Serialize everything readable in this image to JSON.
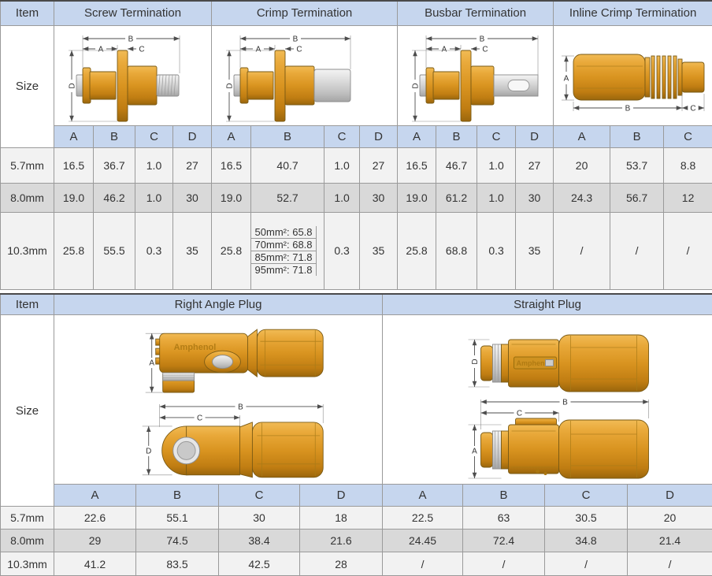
{
  "brand": "Amphenol",
  "colors": {
    "header_bg": "#c6d6ee",
    "row_light": "#f2f2f2",
    "row_dark": "#d9d9d9",
    "border": "#9a9a9a",
    "connector_orange": "#d99420",
    "metal_gray": "#c2c2c2"
  },
  "termination_table": {
    "item_label": "Item",
    "size_label": "Size",
    "groups": [
      {
        "label": "Screw Termination",
        "columns": [
          "A",
          "B",
          "C",
          "D"
        ]
      },
      {
        "label": "Crimp Termination",
        "columns": [
          "A",
          "B",
          "C",
          "D"
        ]
      },
      {
        "label": "Busbar Termination",
        "columns": [
          "A",
          "B",
          "C",
          "D"
        ]
      },
      {
        "label": "Inline Crimp Termination",
        "columns": [
          "A",
          "B",
          "C"
        ]
      }
    ],
    "rows": [
      {
        "label": "5.7mm",
        "values": [
          [
            "16.5",
            "36.7",
            "1.0",
            "27"
          ],
          [
            "16.5",
            "40.7",
            "1.0",
            "27"
          ],
          [
            "16.5",
            "46.7",
            "1.0",
            "27"
          ],
          [
            "20",
            "53.7",
            "8.8"
          ]
        ]
      },
      {
        "label": "8.0mm",
        "values": [
          [
            "19.0",
            "46.2",
            "1.0",
            "30"
          ],
          [
            "19.0",
            "52.7",
            "1.0",
            "30"
          ],
          [
            "19.0",
            "61.2",
            "1.0",
            "30"
          ],
          [
            "24.3",
            "56.7",
            "12"
          ]
        ]
      },
      {
        "label": "10.3mm",
        "values": [
          [
            "25.8",
            "55.5",
            "0.3",
            "35"
          ],
          [
            "25.8",
            [
              "50mm²: 65.8",
              "70mm²: 68.8",
              "85mm²: 71.8",
              "95mm²: 71.8"
            ],
            "0.3",
            "35"
          ],
          [
            "25.8",
            "68.8",
            "0.3",
            "35"
          ],
          [
            "/",
            "/",
            "/"
          ]
        ]
      }
    ]
  },
  "plug_table": {
    "item_label": "Item",
    "size_label": "Size",
    "groups": [
      {
        "label": "Right Angle Plug",
        "columns": [
          "A",
          "B",
          "C",
          "D"
        ]
      },
      {
        "label": "Straight Plug",
        "columns": [
          "A",
          "B",
          "C",
          "D"
        ]
      }
    ],
    "rows": [
      {
        "label": "5.7mm",
        "values": [
          [
            "22.6",
            "55.1",
            "30",
            "18"
          ],
          [
            "22.5",
            "63",
            "30.5",
            "20"
          ]
        ]
      },
      {
        "label": "8.0mm",
        "values": [
          [
            "29",
            "74.5",
            "38.4",
            "21.6"
          ],
          [
            "24.45",
            "72.4",
            "34.8",
            "21.4"
          ]
        ]
      },
      {
        "label": "10.3mm",
        "values": [
          [
            "41.2",
            "83.5",
            "42.5",
            "28"
          ],
          [
            "/",
            "/",
            "/",
            "/"
          ]
        ]
      }
    ]
  }
}
